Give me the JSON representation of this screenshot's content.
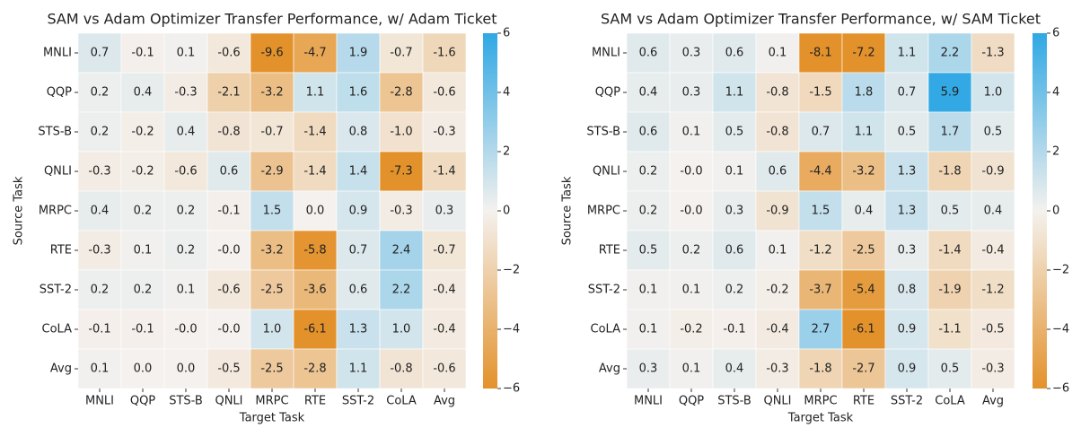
{
  "chart_data": [
    {
      "type": "heatmap",
      "title": "SAM vs Adam Optimizer Transfer Performance, w/ Adam Ticket",
      "xlabel": "Target Task",
      "ylabel": "Source Task",
      "x": [
        "MNLI",
        "QQP",
        "STS-B",
        "QNLI",
        "MRPC",
        "RTE",
        "SST-2",
        "CoLA",
        "Avg"
      ],
      "y": [
        "MNLI",
        "QQP",
        "STS-B",
        "QNLI",
        "MRPC",
        "RTE",
        "SST-2",
        "CoLA",
        "Avg"
      ],
      "values": [
        [
          0.7,
          -0.1,
          0.1,
          -0.6,
          -9.6,
          -4.7,
          1.9,
          -0.7,
          -1.6
        ],
        [
          0.2,
          0.4,
          -0.3,
          -2.1,
          -3.2,
          1.1,
          1.6,
          -2.8,
          -0.6
        ],
        [
          0.2,
          -0.2,
          0.4,
          -0.8,
          -0.7,
          -1.4,
          0.8,
          -1.0,
          -0.3
        ],
        [
          -0.3,
          -0.2,
          -0.6,
          0.6,
          -2.9,
          -1.4,
          1.4,
          -7.3,
          -1.4
        ],
        [
          0.4,
          0.2,
          0.2,
          -0.1,
          1.5,
          0.0,
          0.9,
          -0.3,
          0.3
        ],
        [
          -0.3,
          0.1,
          0.2,
          -0.0,
          -3.2,
          -5.8,
          0.7,
          2.4,
          -0.7
        ],
        [
          0.2,
          0.2,
          0.1,
          -0.6,
          -2.5,
          -3.6,
          0.6,
          2.2,
          -0.4
        ],
        [
          -0.1,
          -0.1,
          -0.0,
          -0.0,
          1.0,
          -6.1,
          1.3,
          1.0,
          -0.4
        ],
        [
          0.1,
          0.0,
          0.0,
          -0.5,
          -2.5,
          -2.8,
          1.1,
          -0.8,
          -0.6
        ]
      ],
      "value_labels": [
        [
          "0.7",
          "-0.1",
          "0.1",
          "-0.6",
          "-9.6",
          "-4.7",
          "1.9",
          "-0.7",
          "-1.6"
        ],
        [
          "0.2",
          "0.4",
          "-0.3",
          "-2.1",
          "-3.2",
          "1.1",
          "1.6",
          "-2.8",
          "-0.6"
        ],
        [
          "0.2",
          "-0.2",
          "0.4",
          "-0.8",
          "-0.7",
          "-1.4",
          "0.8",
          "-1.0",
          "-0.3"
        ],
        [
          "-0.3",
          "-0.2",
          "-0.6",
          "0.6",
          "-2.9",
          "-1.4",
          "1.4",
          "-7.3",
          "-1.4"
        ],
        [
          "0.4",
          "0.2",
          "0.2",
          "-0.1",
          "1.5",
          "0.0",
          "0.9",
          "-0.3",
          "0.3"
        ],
        [
          "-0.3",
          "0.1",
          "0.2",
          "-0.0",
          "-3.2",
          "-5.8",
          "0.7",
          "2.4",
          "-0.7"
        ],
        [
          "0.2",
          "0.2",
          "0.1",
          "-0.6",
          "-2.5",
          "-3.6",
          "0.6",
          "2.2",
          "-0.4"
        ],
        [
          "-0.1",
          "-0.1",
          "-0.0",
          "-0.0",
          "1.0",
          "-6.1",
          "1.3",
          "1.0",
          "-0.4"
        ],
        [
          "0.1",
          "0.0",
          "0.0",
          "-0.5",
          "-2.5",
          "-2.8",
          "1.1",
          "-0.8",
          "-0.6"
        ]
      ],
      "cmap": [
        "#e3922b",
        "#f4f1ee",
        "#2fa8e4"
      ],
      "clim": [
        -6,
        6
      ],
      "cticks": [
        {
          "value": -6,
          "label": "−6"
        },
        {
          "value": -4,
          "label": "−4"
        },
        {
          "value": -2,
          "label": "−2"
        },
        0,
        2,
        4,
        6
      ]
    },
    {
      "type": "heatmap",
      "title": "SAM vs Adam Optimizer Transfer Performance, w/ SAM Ticket",
      "xlabel": "Target Task",
      "ylabel": "Source Task",
      "x": [
        "MNLI",
        "QQP",
        "STS-B",
        "QNLI",
        "MRPC",
        "RTE",
        "SST-2",
        "CoLA",
        "Avg"
      ],
      "y": [
        "MNLI",
        "QQP",
        "STS-B",
        "QNLI",
        "MRPC",
        "RTE",
        "SST-2",
        "CoLA",
        "Avg"
      ],
      "values": [
        [
          0.6,
          0.3,
          0.6,
          0.1,
          -8.1,
          -7.2,
          1.1,
          2.2,
          -1.3
        ],
        [
          0.4,
          0.3,
          1.1,
          -0.8,
          -1.5,
          1.8,
          0.7,
          5.9,
          1.0
        ],
        [
          0.6,
          0.1,
          0.5,
          -0.8,
          0.7,
          1.1,
          0.5,
          1.7,
          0.5
        ],
        [
          0.2,
          -0.0,
          0.1,
          0.6,
          -4.4,
          -3.2,
          1.3,
          -1.8,
          -0.9
        ],
        [
          0.2,
          -0.0,
          0.3,
          -0.9,
          1.5,
          0.4,
          1.3,
          0.5,
          0.4
        ],
        [
          0.5,
          0.2,
          0.6,
          0.1,
          -1.2,
          -2.5,
          0.3,
          -1.4,
          -0.4
        ],
        [
          0.1,
          0.1,
          0.2,
          -0.2,
          -3.7,
          -5.4,
          0.8,
          -1.9,
          -1.2
        ],
        [
          0.1,
          -0.2,
          -0.1,
          -0.4,
          2.7,
          -6.1,
          0.9,
          -1.1,
          -0.5
        ],
        [
          0.3,
          0.1,
          0.4,
          -0.3,
          -1.8,
          -2.7,
          0.9,
          0.5,
          -0.3
        ]
      ],
      "value_labels": [
        [
          "0.6",
          "0.3",
          "0.6",
          "0.1",
          "-8.1",
          "-7.2",
          "1.1",
          "2.2",
          "-1.3"
        ],
        [
          "0.4",
          "0.3",
          "1.1",
          "-0.8",
          "-1.5",
          "1.8",
          "0.7",
          "5.9",
          "1.0"
        ],
        [
          "0.6",
          "0.1",
          "0.5",
          "-0.8",
          "0.7",
          "1.1",
          "0.5",
          "1.7",
          "0.5"
        ],
        [
          "0.2",
          "-0.0",
          "0.1",
          "0.6",
          "-4.4",
          "-3.2",
          "1.3",
          "-1.8",
          "-0.9"
        ],
        [
          "0.2",
          "-0.0",
          "0.3",
          "-0.9",
          "1.5",
          "0.4",
          "1.3",
          "0.5",
          "0.4"
        ],
        [
          "0.5",
          "0.2",
          "0.6",
          "0.1",
          "-1.2",
          "-2.5",
          "0.3",
          "-1.4",
          "-0.4"
        ],
        [
          "0.1",
          "0.1",
          "0.2",
          "-0.2",
          "-3.7",
          "-5.4",
          "0.8",
          "-1.9",
          "-1.2"
        ],
        [
          "0.1",
          "-0.2",
          "-0.1",
          "-0.4",
          "2.7",
          "-6.1",
          "0.9",
          "-1.1",
          "-0.5"
        ],
        [
          "0.3",
          "0.1",
          "0.4",
          "-0.3",
          "-1.8",
          "-2.7",
          "0.9",
          "0.5",
          "-0.3"
        ]
      ],
      "cmap": [
        "#e3922b",
        "#f4f1ee",
        "#2fa8e4"
      ],
      "clim": [
        -6,
        6
      ],
      "cticks": [
        {
          "value": -6,
          "label": "−6"
        },
        {
          "value": -4,
          "label": "−4"
        },
        {
          "value": -2,
          "label": "−2"
        },
        0,
        2,
        4,
        6
      ]
    }
  ]
}
